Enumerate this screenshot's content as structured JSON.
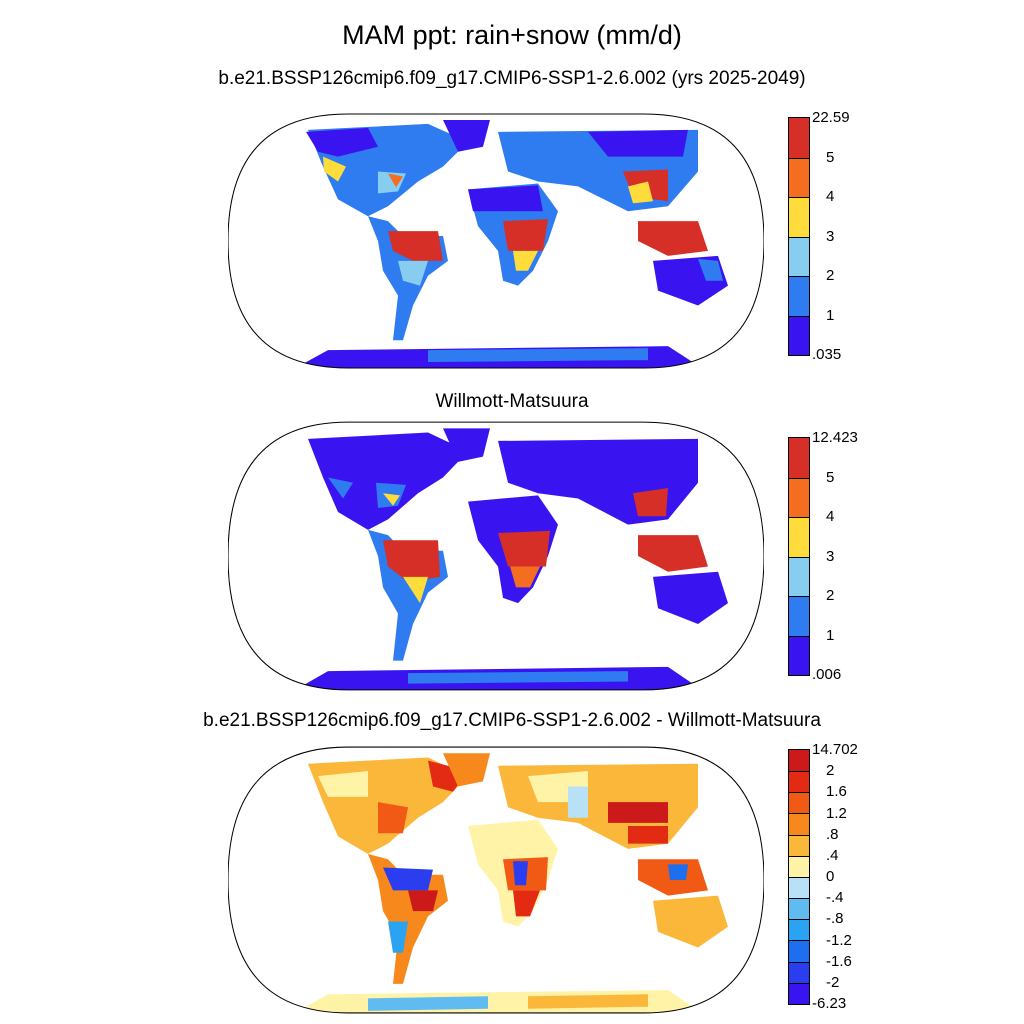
{
  "title": "MAM ppt: rain+snow (mm/d)",
  "panels": [
    {
      "title": "b.e21.BSSP126cmip6.f09_g17.CMIP6-SSP1-2.6.002 (yrs 2025-2049)",
      "colorbar": {
        "labels": [
          "22.59",
          "5",
          "4",
          "3",
          "2",
          "1",
          ".035"
        ],
        "colors": [
          "#d62f27",
          "#f46d21",
          "#fddc3c",
          "#86cdef",
          "#2f7cf0",
          "#3a14f0"
        ]
      }
    },
    {
      "title": "Willmott-Matsuura",
      "colorbar": {
        "labels": [
          "12.423",
          "5",
          "4",
          "3",
          "2",
          "1",
          ".006"
        ],
        "colors": [
          "#d62f27",
          "#f46d21",
          "#fddc3c",
          "#86cdef",
          "#2f7cf0",
          "#3a14f0"
        ]
      }
    },
    {
      "title": "b.e21.BSSP126cmip6.f09_g17.CMIP6-SSP1-2.6.002 - Willmott-Matsuura",
      "colorbar": {
        "labels": [
          "14.702",
          "2",
          "1.6",
          "1.2",
          ".8",
          ".4",
          "0",
          "-.4",
          "-.8",
          "-1.2",
          "-1.6",
          "-2",
          "-6.23"
        ],
        "colors": [
          "#cc1a1a",
          "#e32a12",
          "#f05a14",
          "#f7891c",
          "#fbb73a",
          "#fff3a8",
          "#b8e0f6",
          "#5fbbf0",
          "#2ba3f2",
          "#1e6ef0",
          "#2a3ef0",
          "#3a14f0"
        ]
      }
    }
  ]
}
